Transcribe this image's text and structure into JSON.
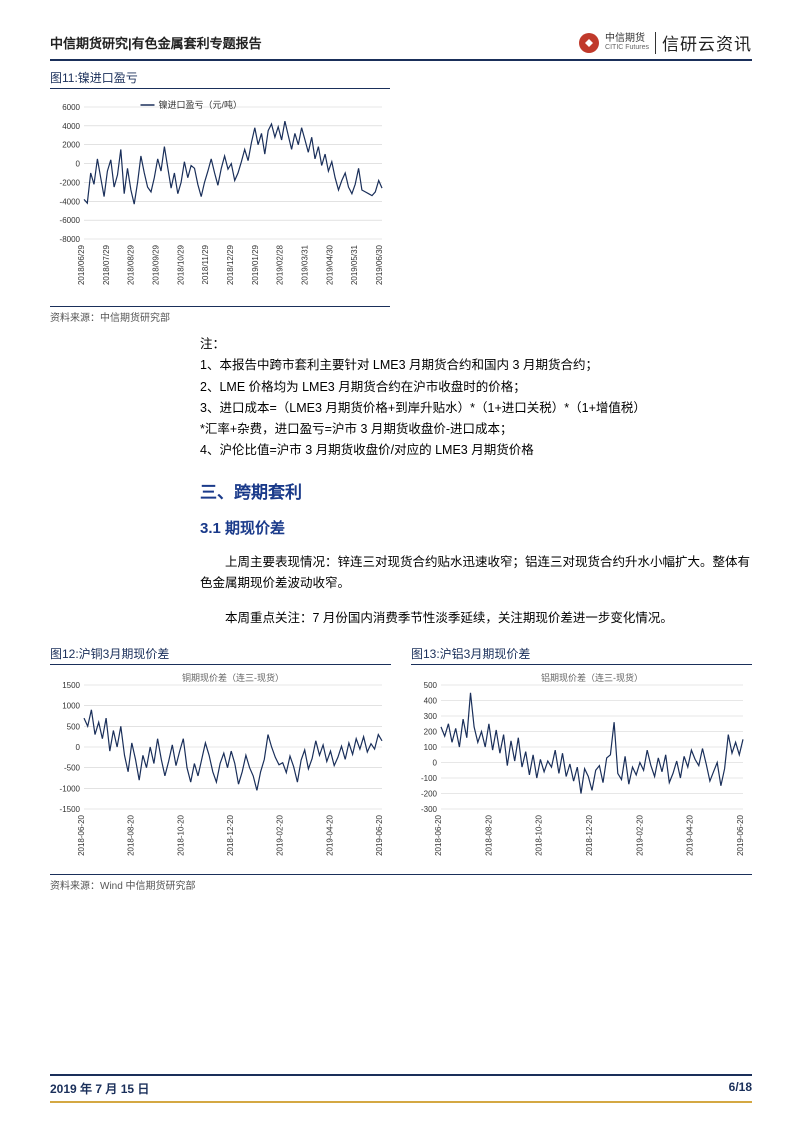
{
  "header": {
    "title": "中信期货研究|有色金属套利专题报告",
    "brand_cn": "中信期货",
    "brand_en": "CITIC Futures",
    "brand2": "信研云资讯"
  },
  "chart11": {
    "title": "图11:镍进口盈亏",
    "legend": "镍进口盈亏（元/吨）",
    "source": "资料来源：中信期货研究部",
    "type": "line",
    "line_color": "#1a2f5a",
    "grid_color": "#d0d0d0",
    "background_color": "#ffffff",
    "ylim": [
      -8000,
      6000
    ],
    "ytick_step": 2000,
    "yticks": [
      -8000,
      -6000,
      -4000,
      -2000,
      0,
      2000,
      4000,
      6000
    ],
    "xlabels": [
      "2018/06/29",
      "2018/07/29",
      "2018/08/29",
      "2018/09/29",
      "2018/10/29",
      "2018/11/29",
      "2018/12/29",
      "2019/01/29",
      "2019/02/28",
      "2019/03/31",
      "2019/04/30",
      "2019/05/31",
      "2019/06/30"
    ],
    "values": [
      -3800,
      -4200,
      -1000,
      -2200,
      500,
      -1500,
      -3500,
      -800,
      400,
      -2500,
      -1200,
      1500,
      -3200,
      -500,
      -2800,
      -4300,
      -2000,
      800,
      -1000,
      -2500,
      -3000,
      -1500,
      500,
      -800,
      1800,
      -400,
      -2600,
      -1000,
      -3200,
      -2000,
      200,
      -1500,
      -200,
      -500,
      -2200,
      -3500,
      -2000,
      -800,
      500,
      -1000,
      -2300,
      -500,
      800,
      -600,
      0,
      -1800,
      -1000,
      200,
      1500,
      300,
      2200,
      3800,
      2000,
      3200,
      1000,
      3500,
      4200,
      2800,
      3900,
      2500,
      4500,
      3000,
      1500,
      3200,
      2000,
      3800,
      2500,
      1200,
      2800,
      500,
      1800,
      -200,
      1000,
      -800,
      200,
      -1500,
      -2800,
      -1800,
      -1000,
      -2500,
      -3200,
      -2200,
      -500,
      -2800,
      -3000,
      -3200,
      -3400,
      -3000,
      -1800,
      -2600
    ]
  },
  "notes": {
    "head": "注：",
    "n1": "1、本报告中跨市套利主要针对 LME3 月期货合约和国内 3 月期货合约；",
    "n2": "2、LME 价格均为 LME3 月期货合约在沪市收盘时的价格；",
    "n3": "3、进口成本=（LME3 月期货价格+到岸升贴水）*（1+进口关税）*（1+增值税）",
    "n3b": "*汇率+杂费，进口盈亏=沪市 3 月期货收盘价-进口成本；",
    "n4": "4、沪伦比值=沪市 3 月期货收盘价/对应的 LME3 月期货价格"
  },
  "sections": {
    "s3": "三、跨期套利",
    "s31": "3.1 期现价差"
  },
  "paras": {
    "p1": "上周主要表现情况：锌连三对现货合约贴水迅速收窄；铝连三对现货合约升水小幅扩大。整体有色金属期现价差波动收窄。",
    "p2": "本周重点关注：7 月份国内消费季节性淡季延续，关注期现价差进一步变化情况。"
  },
  "chart12": {
    "title": "图12:沪铜3月期现价差",
    "legend": "铜期现价差（连三-现货）",
    "type": "line",
    "line_color": "#1a2f5a",
    "grid_color": "#d0d0d0",
    "background_color": "#ffffff",
    "ylim": [
      -1500,
      1500
    ],
    "ytick_step": 500,
    "yticks": [
      -1500,
      -1000,
      -500,
      0,
      500,
      1000,
      1500
    ],
    "xlabels": [
      "2018-06-20",
      "2018-08-20",
      "2018-10-20",
      "2018-12-20",
      "2019-02-20",
      "2019-04-20",
      "2019-06-20"
    ],
    "values": [
      700,
      500,
      900,
      300,
      600,
      200,
      700,
      -100,
      400,
      0,
      500,
      -200,
      -600,
      100,
      -300,
      -800,
      -200,
      -500,
      0,
      -400,
      200,
      -300,
      -700,
      -350,
      50,
      -450,
      -100,
      200,
      -500,
      -850,
      -400,
      -700,
      -300,
      100,
      -200,
      -600,
      -850,
      -400,
      -150,
      -500,
      -100,
      -400,
      -900,
      -600,
      -200,
      -500,
      -700,
      -1050,
      -600,
      -300,
      300,
      0,
      -250,
      -430,
      -380,
      -620,
      -220,
      -480,
      -850,
      -320,
      -70,
      -530,
      -280,
      150,
      -200,
      50,
      -350,
      -100,
      -450,
      -250,
      20,
      -300,
      100,
      -180,
      200,
      -50,
      250,
      -120,
      80,
      -50,
      300,
      150
    ]
  },
  "chart13": {
    "title": "图13:沪铝3月期现价差",
    "legend": "铝期现价差（连三-现货）",
    "type": "line",
    "line_color": "#1a2f5a",
    "grid_color": "#d0d0d0",
    "background_color": "#ffffff",
    "ylim": [
      -300,
      500
    ],
    "ytick_step": 100,
    "yticks": [
      -300,
      -200,
      -100,
      0,
      100,
      200,
      300,
      400,
      500
    ],
    "xlabels": [
      "2018-06-20",
      "2018-08-20",
      "2018-10-20",
      "2018-12-20",
      "2019-02-20",
      "2019-04-20",
      "2019-06-20"
    ],
    "values": [
      230,
      170,
      250,
      130,
      220,
      100,
      280,
      160,
      450,
      230,
      130,
      200,
      100,
      250,
      80,
      210,
      60,
      180,
      -20,
      140,
      10,
      160,
      -30,
      70,
      -80,
      50,
      -100,
      20,
      -60,
      10,
      -30,
      80,
      -70,
      60,
      -90,
      -10,
      -120,
      -30,
      -200,
      -40,
      -90,
      -180,
      -50,
      -20,
      -130,
      30,
      50,
      260,
      -70,
      -110,
      40,
      -140,
      -30,
      -80,
      0,
      -50,
      80,
      -20,
      -90,
      30,
      -60,
      50,
      -130,
      -70,
      10,
      -100,
      40,
      -30,
      80,
      20,
      -20,
      90,
      -10,
      -120,
      -60,
      0,
      -150,
      -40,
      180,
      60,
      130,
      50,
      150
    ]
  },
  "bottom_source": "资料来源：Wind 中信期货研究部",
  "footer": {
    "date": "2019 年 7 月 15 日",
    "page": "6/18"
  },
  "colors": {
    "header_rule": "#1a2f5a",
    "accent_gold": "#d4a843",
    "brand_red": "#c0392b",
    "heading_blue": "#1a3a8a"
  }
}
